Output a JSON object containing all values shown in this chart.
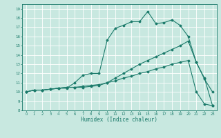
{
  "xlabel": "Humidex (Indice chaleur)",
  "xlim": [
    -0.5,
    23.5
  ],
  "ylim": [
    8,
    19.5
  ],
  "yticks": [
    8,
    9,
    10,
    11,
    12,
    13,
    14,
    15,
    16,
    17,
    18,
    19
  ],
  "xticks": [
    0,
    1,
    2,
    3,
    4,
    5,
    6,
    7,
    8,
    9,
    10,
    11,
    12,
    13,
    14,
    15,
    16,
    17,
    18,
    19,
    20,
    21,
    22,
    23
  ],
  "bg_color": "#c8e8e0",
  "grid_color": "#ffffff",
  "line_color": "#1a7a6a",
  "line1_x": [
    0,
    1,
    2,
    3,
    4,
    5,
    6,
    7,
    8,
    9,
    10,
    11,
    12,
    13,
    14,
    15,
    16,
    17,
    18,
    19,
    20,
    21,
    22,
    23
  ],
  "line1_y": [
    10,
    10.2,
    10.2,
    10.3,
    10.4,
    10.4,
    11.0,
    11.8,
    12.0,
    12.0,
    15.6,
    16.9,
    17.2,
    17.6,
    17.6,
    18.7,
    17.4,
    17.5,
    17.8,
    17.2,
    16.0,
    13.2,
    11.4,
    10.0
  ],
  "line2_x": [
    0,
    1,
    2,
    3,
    4,
    5,
    6,
    7,
    8,
    9,
    10,
    11,
    12,
    13,
    14,
    15,
    16,
    17,
    18,
    19,
    20,
    21,
    22,
    23
  ],
  "line2_y": [
    10,
    10.2,
    10.2,
    10.3,
    10.4,
    10.5,
    10.5,
    10.5,
    10.6,
    10.7,
    11.0,
    11.5,
    12.0,
    12.5,
    13.0,
    13.4,
    13.8,
    14.2,
    14.6,
    15.0,
    15.5,
    13.2,
    11.5,
    8.5
  ],
  "line3_x": [
    0,
    1,
    2,
    3,
    4,
    5,
    6,
    7,
    8,
    9,
    10,
    11,
    12,
    13,
    14,
    15,
    16,
    17,
    18,
    19,
    20,
    21,
    22,
    23
  ],
  "line3_y": [
    10,
    10.2,
    10.2,
    10.3,
    10.4,
    10.5,
    10.5,
    10.6,
    10.7,
    10.8,
    11.0,
    11.2,
    11.5,
    11.7,
    12.0,
    12.2,
    12.5,
    12.7,
    13.0,
    13.2,
    13.4,
    10.0,
    8.7,
    8.5
  ]
}
